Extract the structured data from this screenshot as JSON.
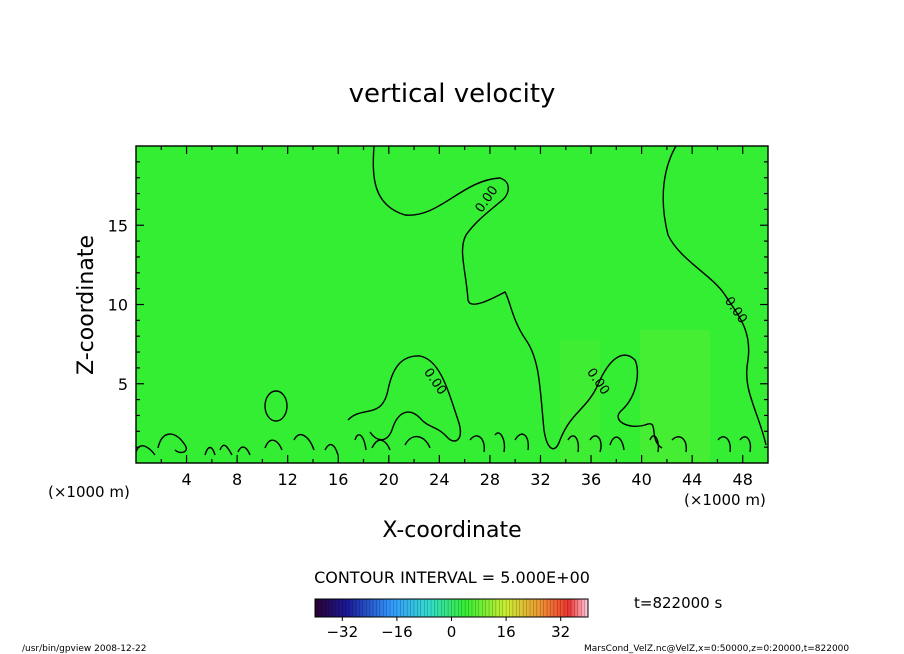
{
  "chart_data": {
    "type": "heatmap",
    "title": "vertical velocity",
    "xlabel": "X-coordinate",
    "ylabel": "Z-coordinate",
    "x_unit": "(×1000 m)",
    "xlim": [
      0,
      50
    ],
    "ylim": [
      0,
      20
    ],
    "x_ticks": [
      4,
      8,
      12,
      16,
      20,
      24,
      28,
      32,
      36,
      40,
      44,
      48
    ],
    "y_ticks": [
      5,
      10,
      15
    ],
    "contour_interval_label": "CONTOUR INTERVAL = 5.000E+00",
    "contour_labels": [
      {
        "text": "0.00",
        "x": 28,
        "y": 16.5
      },
      {
        "text": "0.00",
        "x": 47.2,
        "y": 9.5
      },
      {
        "text": "0.00",
        "x": 23.4,
        "y": 5
      },
      {
        "text": "0.00",
        "x": 36.3,
        "y": 5
      }
    ],
    "field_color": "#33ee33",
    "colorbar": {
      "ticks": [
        -32,
        -16,
        0,
        16,
        32
      ],
      "range": [
        -40,
        40
      ]
    },
    "time_label": "t=822000 s"
  },
  "footer": {
    "left": "/usr/bin/gpview  2008-12-22",
    "right": "MarsCond_VelZ.nc@VelZ,x=0:50000,z=0:20000,t=822000"
  }
}
